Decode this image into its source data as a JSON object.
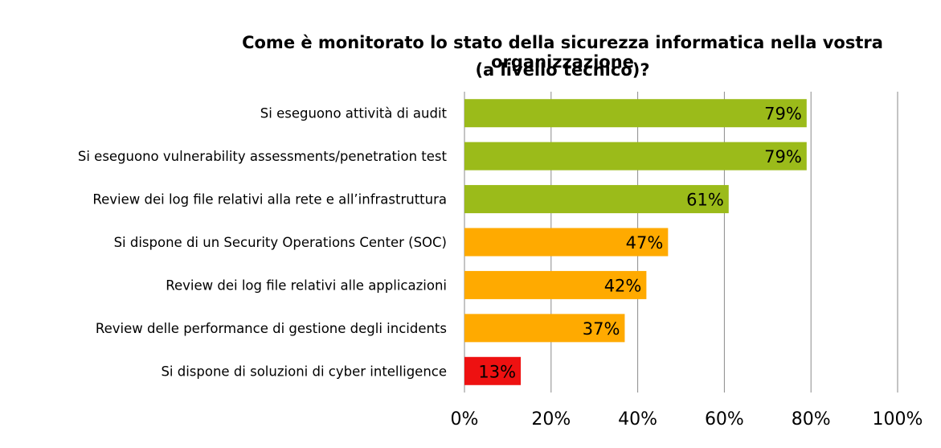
{
  "chart_data": {
    "type": "bar",
    "orientation": "horizontal",
    "title": "Come è monitorato lo stato della sicurezza informatica nella vostra organizzazione (a livello tecnico)?",
    "title_lines": [
      "Come è monitorato lo stato della sicurezza informatica nella vostra organizzazione",
      "(a livello tecnico)?"
    ],
    "categories": [
      "Si eseguono attività di audit",
      "Si eseguono vulnerability assessments/penetration test",
      "Review dei log file relativi alla rete e all’infrastruttura",
      "Si dispone di un Security Operations Center (SOC)",
      "Review dei log file relativi alle applicazioni",
      "Review delle performance di gestione degli incidents",
      "Si dispone di soluzioni di cyber intelligence"
    ],
    "values": [
      79,
      79,
      61,
      47,
      42,
      37,
      13
    ],
    "data_labels": [
      "79%",
      "79%",
      "61%",
      "47%",
      "42%",
      "37%",
      "13%"
    ],
    "bar_colors": [
      "#9bbb1a",
      "#9bbb1a",
      "#9bbb1a",
      "#ffaa00",
      "#ffaa00",
      "#ffaa00",
      "#ee1111"
    ],
    "xlim": [
      0,
      100
    ],
    "x_ticks": [
      0,
      20,
      40,
      60,
      80,
      100
    ],
    "x_tick_labels": [
      "0%",
      "20%",
      "40%",
      "60%",
      "80%",
      "100%"
    ],
    "grid": true,
    "legend": "none",
    "xlabel": "",
    "ylabel": ""
  }
}
